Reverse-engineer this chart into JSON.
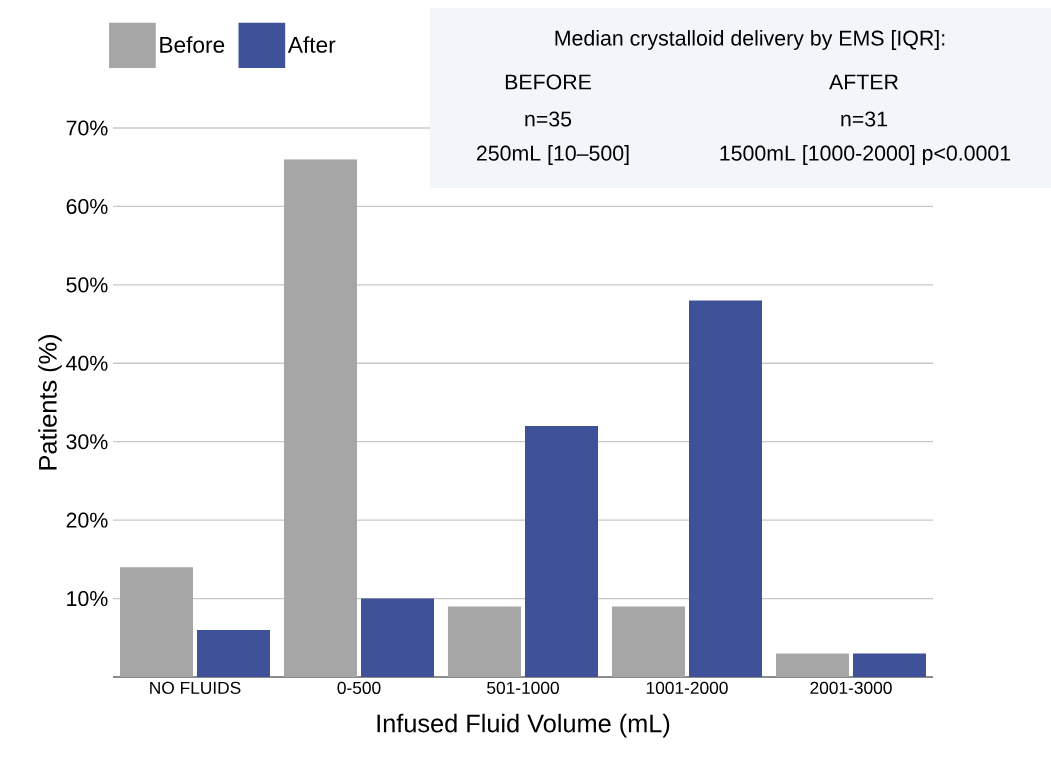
{
  "chart_data": {
    "type": "bar",
    "xlabel": "Infused Fluid Volume (mL)",
    "ylabel": "Patients (%)",
    "categories": [
      "NO FLUIDS",
      "0-500",
      "501-1000",
      "1001-2000",
      "2001-3000"
    ],
    "series": [
      {
        "name": "Before",
        "color": "#a6a6a6",
        "values": [
          14,
          66,
          9,
          9,
          3
        ]
      },
      {
        "name": "After",
        "color": "#3f5199",
        "values": [
          6,
          10,
          32,
          48,
          3
        ]
      }
    ],
    "ylim": [
      0,
      70
    ],
    "yticks": [
      {
        "value": 10,
        "label": "10%"
      },
      {
        "value": 20,
        "label": "20%"
      },
      {
        "value": 30,
        "label": "30%"
      },
      {
        "value": 40,
        "label": "40%"
      },
      {
        "value": 50,
        "label": "50%"
      },
      {
        "value": 60,
        "label": "60%"
      },
      {
        "value": 70,
        "label": "70%"
      }
    ],
    "grid": "y",
    "legend": "top left",
    "annotations": [
      "Median crystalloid delivery by EMS [IQR]:",
      "BEFORE",
      "n=35",
      "250mL [10–500]",
      "AFTER",
      "n=31",
      "1500mL [1000-2000] p<0.0001"
    ]
  }
}
